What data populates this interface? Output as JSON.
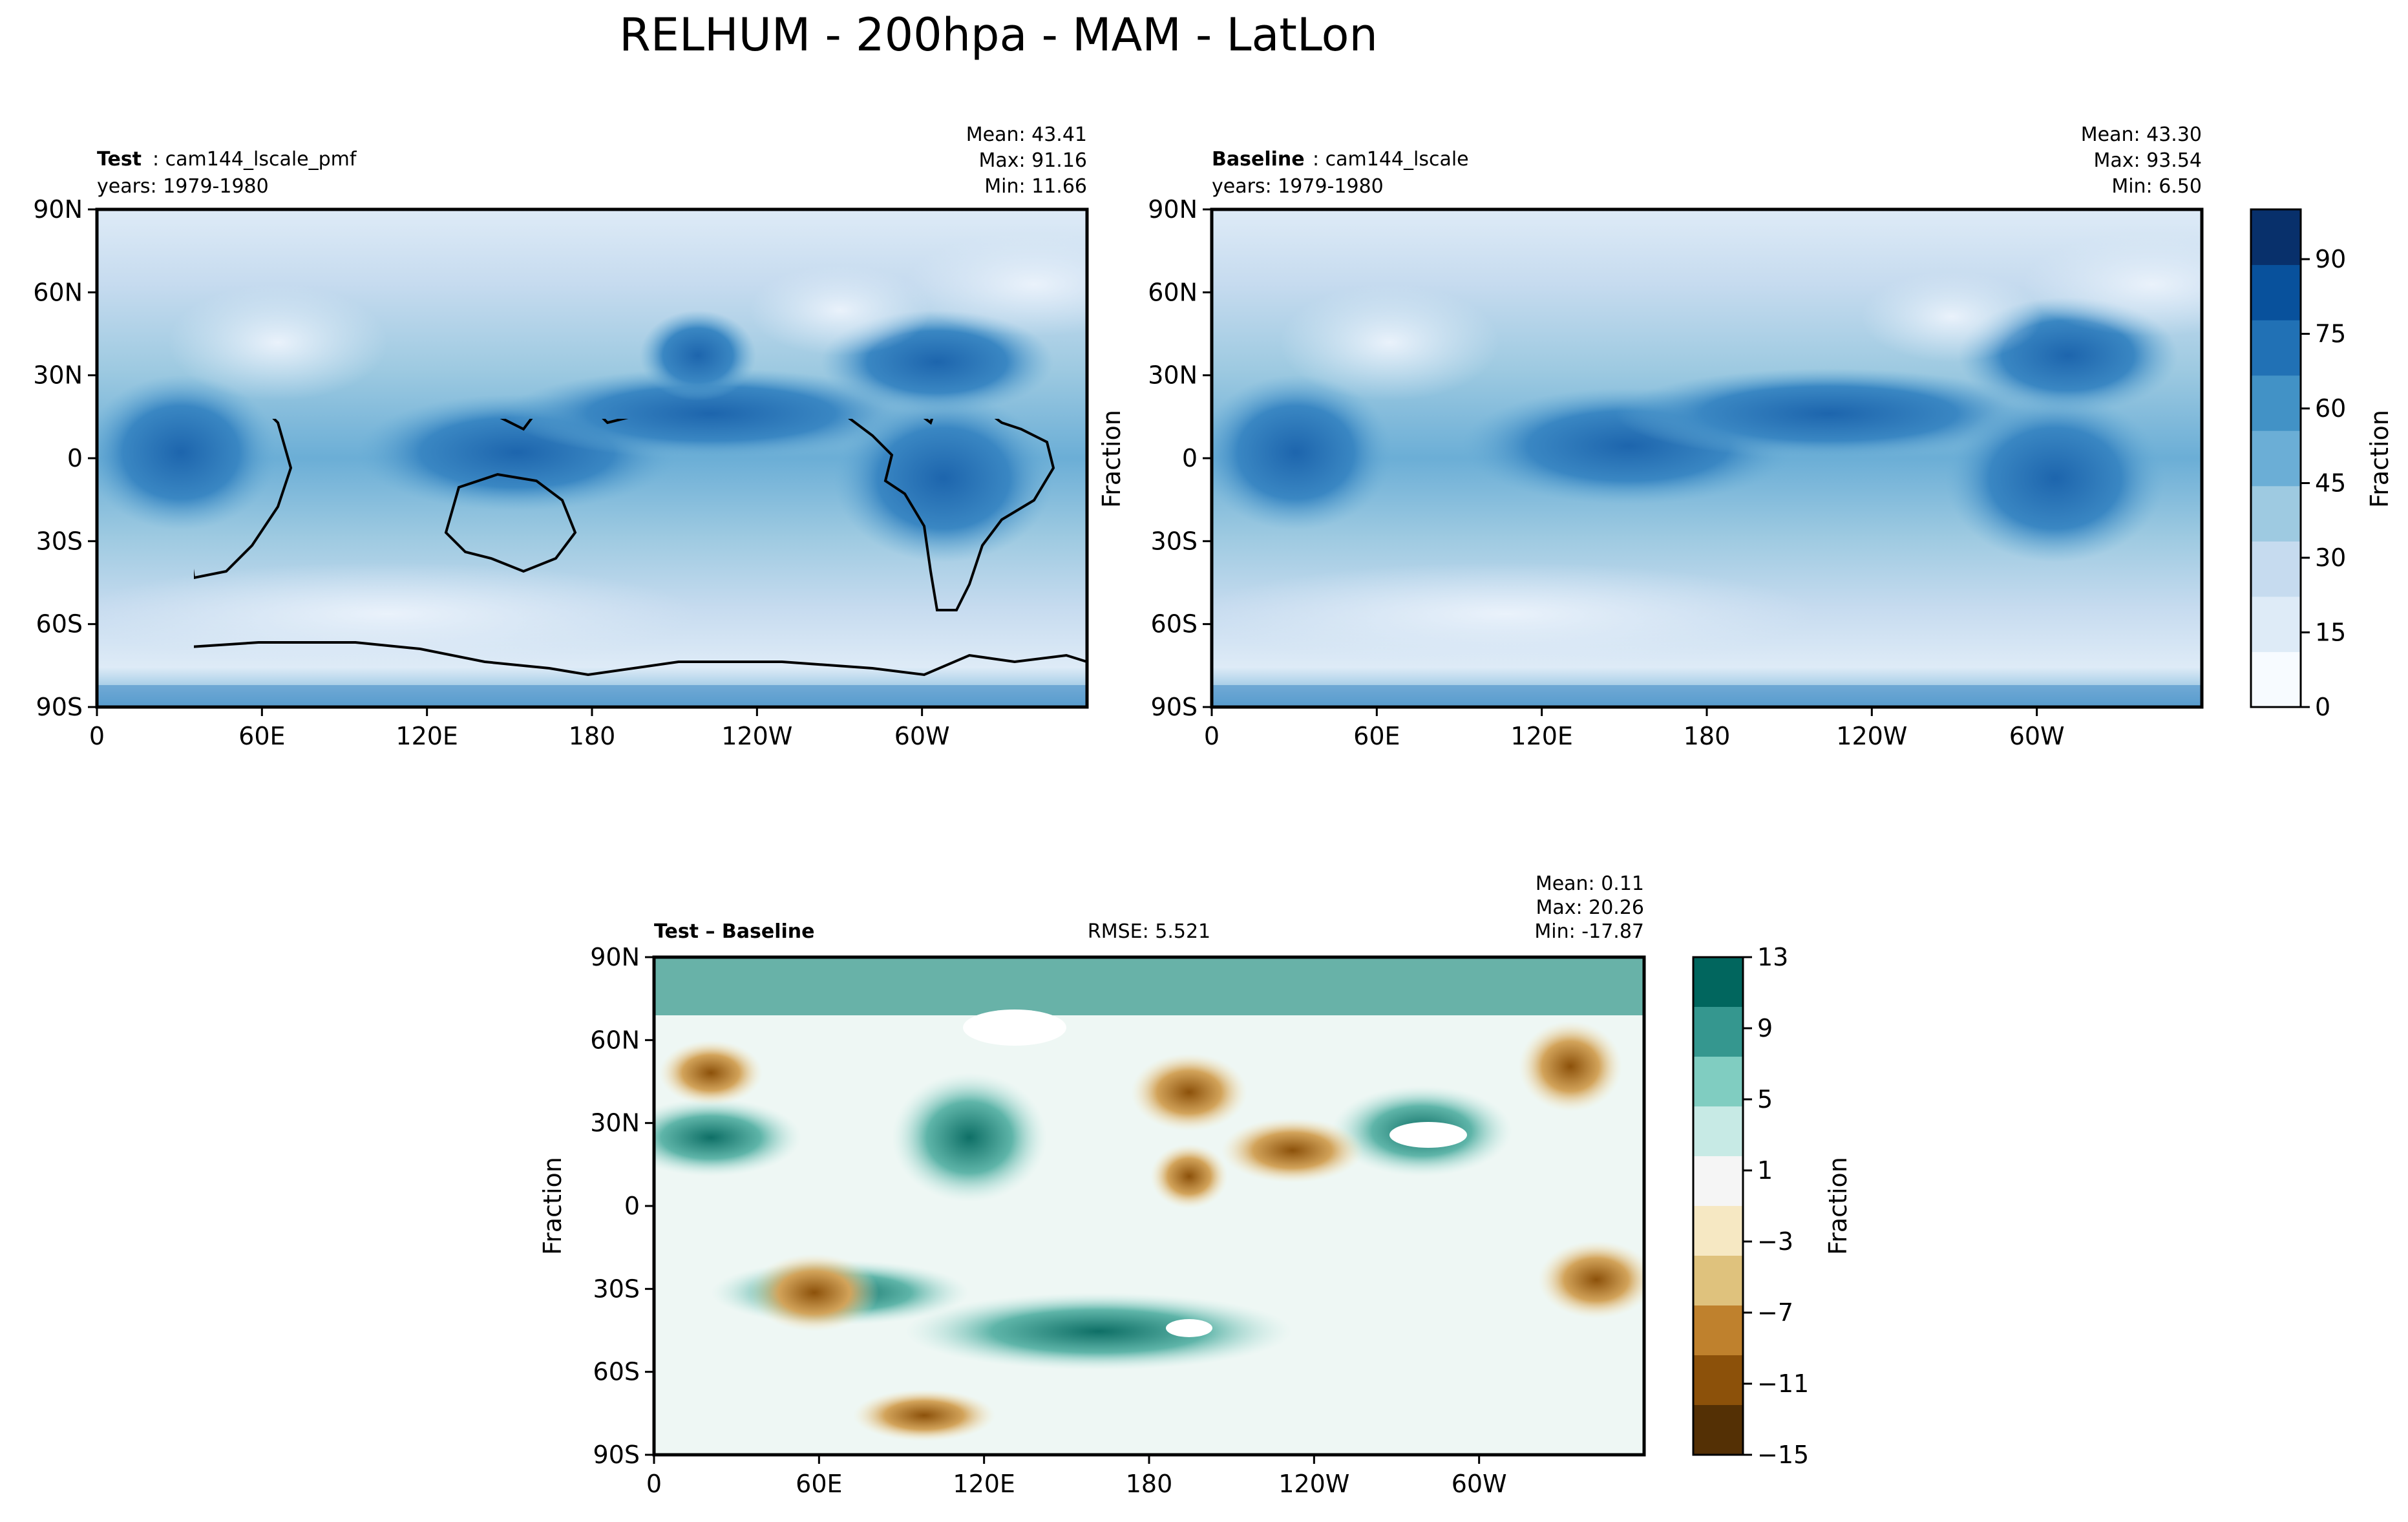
{
  "figure": {
    "title": "RELHUM - 200hpa - MAM - LatLon"
  },
  "chart_data": [
    {
      "type": "heatmap",
      "panel": "test",
      "label_bold": "Test",
      "label_rest": ": cam144_lscale_pmf",
      "years": "years: 1979-1980",
      "stats": {
        "mean": "Mean: 43.41",
        "max": "Max: 91.16",
        "min": "Min: 11.66"
      },
      "xlabel": "",
      "ylabel": "",
      "x_ticks": [
        "0",
        "60E",
        "120E",
        "180",
        "120W",
        "60W"
      ],
      "y_ticks": [
        "90N",
        "60N",
        "30N",
        "0",
        "30S",
        "60S",
        "90S"
      ],
      "xlim": [
        0,
        360
      ],
      "ylim": [
        -90,
        90
      ]
    },
    {
      "type": "heatmap",
      "panel": "baseline",
      "label_bold": "Baseline",
      "label_rest": ": cam144_lscale",
      "years": "years: 1979-1980",
      "stats": {
        "mean": "Mean: 43.30",
        "max": "Max: 93.54",
        "min": "Min:  6.50"
      },
      "xlabel": "",
      "ylabel": "Fraction",
      "x_ticks": [
        "0",
        "60E",
        "120E",
        "180",
        "120W",
        "60W"
      ],
      "y_ticks": [
        "90N",
        "60N",
        "30N",
        "0",
        "30S",
        "60S",
        "90S"
      ],
      "xlim": [
        0,
        360
      ],
      "ylim": [
        -90,
        90
      ],
      "colorbar": {
        "label": "Fraction",
        "ticks": [
          "0",
          "15",
          "30",
          "45",
          "60",
          "75",
          "90"
        ],
        "range": [
          0,
          100
        ],
        "colors": [
          "#f7fbff",
          "#deebf7",
          "#c6dbef",
          "#9ecae1",
          "#6baed6",
          "#4292c6",
          "#2171b5",
          "#08519c",
          "#08306b"
        ]
      }
    },
    {
      "type": "heatmap",
      "panel": "difference",
      "label_bold": "Test – Baseline",
      "rmse": "RMSE: 5.521",
      "stats": {
        "mean": "Mean:  0.11",
        "max": "Max: 20.26",
        "min": "Min: -17.87"
      },
      "xlabel": "",
      "ylabel": "Fraction",
      "x_ticks": [
        "0",
        "60E",
        "120E",
        "180",
        "120W",
        "60W"
      ],
      "y_ticks": [
        "90N",
        "60N",
        "30N",
        "0",
        "30S",
        "60S",
        "90S"
      ],
      "xlim": [
        0,
        360
      ],
      "ylim": [
        -90,
        90
      ],
      "colorbar": {
        "label": "Fraction",
        "ticks": [
          "13",
          "9",
          "5",
          "1",
          "−3",
          "−7",
          "−11",
          "−15"
        ],
        "range": [
          -15,
          13
        ],
        "colors": [
          "#01665e",
          "#35978f",
          "#80cdc1",
          "#c7eae5",
          "#f5f5f5",
          "#f6e8c3",
          "#dfc27d",
          "#bf812d",
          "#8c510a",
          "#543005"
        ]
      }
    }
  ]
}
